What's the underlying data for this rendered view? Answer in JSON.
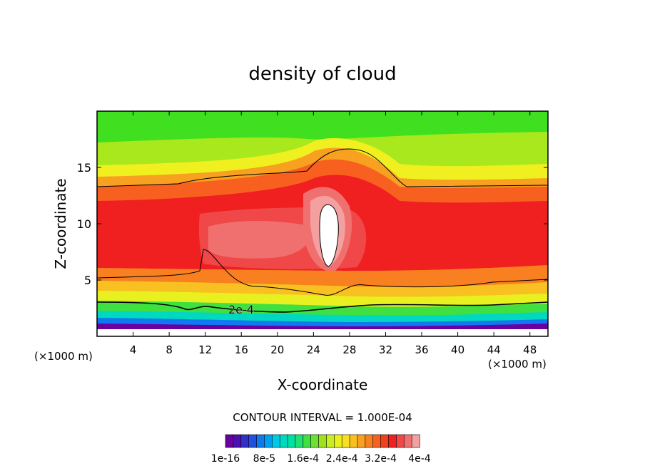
{
  "chart_data": {
    "type": "heatmap",
    "title": "density of cloud",
    "xlabel": "X-coordinate",
    "ylabel": "Z-coordinate",
    "x_unit_left": "(×1000 m)",
    "x_unit_right": "(×1000 m)",
    "xlim": [
      0,
      50
    ],
    "ylim": [
      0,
      20
    ],
    "x_ticks": [
      4,
      8,
      12,
      16,
      20,
      24,
      28,
      32,
      36,
      40,
      44,
      48
    ],
    "y_ticks": [
      5,
      10,
      15
    ],
    "contour_interval_text": "CONTOUR INTERVAL = 1.000E-04",
    "contour_label": "2e-4",
    "colorbar": {
      "min": 1e-16,
      "max": 0.0004,
      "tick_labels": [
        "1e-16",
        "8e-5",
        "1.6e-4",
        "2.4e-4",
        "3.2e-4",
        "4e-4"
      ],
      "colors": [
        "#6a00a0",
        "#4a10b0",
        "#3030c8",
        "#2050e0",
        "#1078f0",
        "#00a0f0",
        "#00c8e8",
        "#00d8c0",
        "#00e0a0",
        "#20e070",
        "#40e040",
        "#70e030",
        "#a0e020",
        "#c8f020",
        "#e8f020",
        "#f8e020",
        "#f8c020",
        "#f8a020",
        "#f88020",
        "#f86020",
        "#f04020",
        "#f02020",
        "#f04848",
        "#f07070",
        "#f4a0a0"
      ],
      "colors_note": "purple (low) to pink (high)"
    },
    "field_bands_by_height": [
      {
        "z_range": [
          0,
          1
        ],
        "level": "very low (purple/blue)"
      },
      {
        "z_range": [
          1,
          3
        ],
        "level": "low (cyan/green)"
      },
      {
        "z_range": [
          3,
          5
        ],
        "level": "moderate (yellow/orange)"
      },
      {
        "z_range": [
          5,
          13
        ],
        "level": "high (red)"
      },
      {
        "z_range": [
          13,
          17
        ],
        "level": "moderate (orange/yellow)"
      },
      {
        "z_range": [
          17,
          20
        ],
        "level": "low-moderate (green)"
      }
    ],
    "maximum_region": {
      "x": 25.5,
      "z": 9,
      "level": "peak (white core)"
    }
  }
}
